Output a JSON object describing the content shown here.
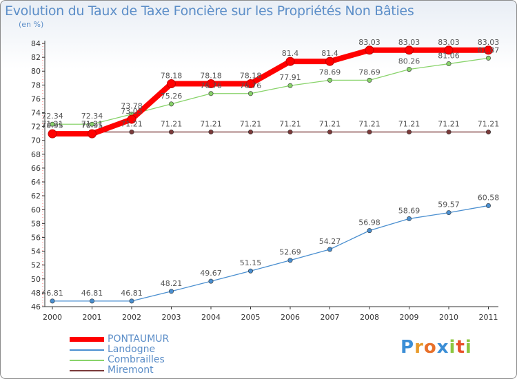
{
  "chart_data": {
    "type": "line",
    "title": "Evolution du Taux de Taxe Foncière sur les Propriétés Non Bâties",
    "ylabel": "(en %)",
    "xlabel": "",
    "categories": [
      "2000",
      "2001",
      "2002",
      "2003",
      "2004",
      "2005",
      "2006",
      "2007",
      "2008",
      "2009",
      "2010",
      "2011"
    ],
    "ylim": [
      46,
      84
    ],
    "yticks": [
      46,
      48,
      50,
      52,
      54,
      56,
      58,
      60,
      62,
      64,
      66,
      68,
      70,
      72,
      74,
      76,
      78,
      80,
      82,
      84
    ],
    "grid": false,
    "legend_position": "bottom-left",
    "series": [
      {
        "name": "PONTAUMUR",
        "color": "#ff0000",
        "values": [
          70.95,
          70.95,
          73.05,
          78.18,
          78.18,
          78.18,
          81.4,
          81.4,
          83.03,
          83.03,
          83.03,
          83.03
        ],
        "labels": [
          "70.95",
          "70.95",
          "73.05",
          "78.18",
          "78.18",
          "78.18",
          "81.4",
          "81.4",
          "83.03",
          "83.03",
          "83.03",
          "83.03"
        ]
      },
      {
        "name": "Landogne",
        "color": "#4a8fd0",
        "values": [
          46.81,
          46.81,
          46.81,
          48.21,
          49.67,
          51.15,
          52.69,
          54.27,
          56.98,
          58.69,
          59.57,
          60.58
        ],
        "labels": [
          "46.81",
          "46.81",
          "46.81",
          "48.21",
          "49.67",
          "51.15",
          "52.69",
          "54.27",
          "56.98",
          "58.69",
          "59.57",
          "60.58"
        ]
      },
      {
        "name": "Combrailles",
        "color": "#88d36a",
        "values": [
          72.34,
          72.34,
          73.78,
          75.26,
          76.76,
          76.76,
          77.91,
          78.69,
          78.69,
          80.26,
          81.06,
          81.87
        ],
        "labels": [
          "72.34",
          "72.34",
          "73.78",
          "75.26",
          "76.76",
          "76.76",
          "77.91",
          "78.69",
          "78.69",
          "80.26",
          "81.06",
          "81.87"
        ]
      },
      {
        "name": "Miremont",
        "color": "#7a3a3a",
        "values": [
          71.21,
          71.21,
          71.21,
          71.21,
          71.21,
          71.21,
          71.21,
          71.21,
          71.21,
          71.21,
          71.21,
          71.21
        ],
        "labels": [
          "71.21",
          "71.21",
          "71.21",
          "71.21",
          "71.21",
          "71.21",
          "71.21",
          "71.21",
          "71.21",
          "71.21",
          "71.21",
          "71.21"
        ]
      }
    ]
  },
  "logo": {
    "letters": [
      "P",
      "r",
      "o",
      "x",
      "i",
      "t",
      "i"
    ],
    "colors": [
      "#3b8ed6",
      "#e89a2a",
      "#e8702a",
      "#3b8ed6",
      "#8cc63f",
      "#e8502a",
      "#8cc63f"
    ]
  }
}
